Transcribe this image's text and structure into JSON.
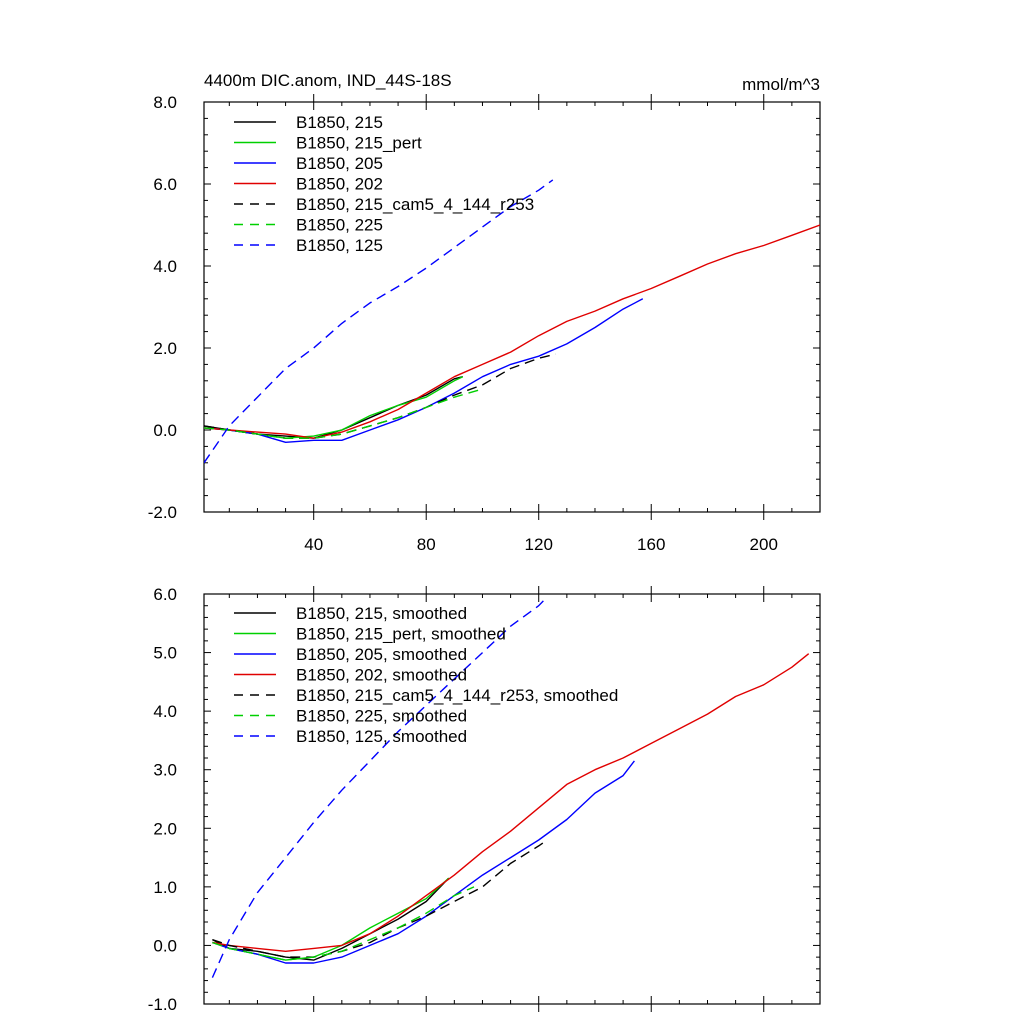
{
  "chart_data": [
    {
      "type": "line",
      "title": "4400m DIC.anom, IND_44S-18S",
      "units": "mmol/m^3",
      "xlim": [
        1,
        220
      ],
      "ylim": [
        -2.0,
        8.0
      ],
      "xticks": [
        40,
        80,
        120,
        160,
        200
      ],
      "xtick_labels": [
        "40",
        "80",
        "120",
        "160",
        "200"
      ],
      "yticks": [
        -2.0,
        0.0,
        2.0,
        4.0,
        6.0,
        8.0
      ],
      "ytick_labels": [
        "-2.0",
        "0.0",
        "2.0",
        "4.0",
        "6.0",
        "8.0"
      ],
      "legend_position": "top-left",
      "series": [
        {
          "name": "B1850, 215",
          "color": "#000000",
          "dash": "solid",
          "x": [
            1,
            10,
            20,
            30,
            40,
            50,
            60,
            70,
            80,
            90,
            93
          ],
          "y": [
            0.1,
            0.0,
            -0.1,
            -0.15,
            -0.2,
            0.0,
            0.3,
            0.6,
            0.85,
            1.25,
            1.3
          ]
        },
        {
          "name": "B1850, 215_pert",
          "color": "#00d000",
          "dash": "solid",
          "x": [
            1,
            10,
            20,
            30,
            40,
            50,
            60,
            70,
            80,
            90,
            93
          ],
          "y": [
            0.05,
            0.0,
            -0.1,
            -0.2,
            -0.15,
            0.0,
            0.35,
            0.6,
            0.8,
            1.2,
            1.3
          ]
        },
        {
          "name": "B1850, 205",
          "color": "#0000ff",
          "dash": "solid",
          "x": [
            1,
            10,
            20,
            30,
            40,
            50,
            60,
            70,
            80,
            90,
            100,
            110,
            120,
            130,
            140,
            150,
            157
          ],
          "y": [
            0.05,
            0.0,
            -0.1,
            -0.3,
            -0.25,
            -0.25,
            0.0,
            0.25,
            0.55,
            0.9,
            1.3,
            1.6,
            1.8,
            2.1,
            2.5,
            2.95,
            3.2
          ]
        },
        {
          "name": "B1850, 202",
          "color": "#e00000",
          "dash": "solid",
          "x": [
            1,
            10,
            20,
            30,
            40,
            50,
            60,
            70,
            80,
            90,
            100,
            110,
            120,
            130,
            140,
            150,
            160,
            170,
            180,
            190,
            200,
            210,
            220
          ],
          "y": [
            0.05,
            0.0,
            -0.05,
            -0.1,
            -0.2,
            -0.05,
            0.2,
            0.5,
            0.9,
            1.3,
            1.6,
            1.9,
            2.3,
            2.65,
            2.9,
            3.2,
            3.45,
            3.75,
            4.05,
            4.3,
            4.5,
            4.75,
            5.0
          ]
        },
        {
          "name": "B1850, 215_cam5_4_144_r253",
          "color": "#000000",
          "dash": "dashed",
          "x": [
            1,
            10,
            20,
            30,
            40,
            50,
            60,
            70,
            80,
            90,
            100,
            110,
            120,
            126
          ],
          "y": [
            0.1,
            0.0,
            -0.1,
            -0.2,
            -0.2,
            -0.1,
            0.1,
            0.3,
            0.55,
            0.85,
            1.1,
            1.5,
            1.75,
            1.85
          ]
        },
        {
          "name": "B1850, 225",
          "color": "#00d000",
          "dash": "dashed",
          "x": [
            1,
            10,
            20,
            30,
            40,
            50,
            60,
            70,
            80,
            90,
            100
          ],
          "y": [
            0.05,
            0.0,
            -0.1,
            -0.2,
            -0.2,
            -0.1,
            0.1,
            0.3,
            0.55,
            0.8,
            1.0
          ]
        },
        {
          "name": "B1850, 125",
          "color": "#0000ff",
          "dash": "dashed",
          "x": [
            1,
            10,
            20,
            30,
            40,
            50,
            60,
            70,
            80,
            90,
            100,
            110,
            120,
            125
          ],
          "y": [
            -0.8,
            0.1,
            0.8,
            1.5,
            2.0,
            2.6,
            3.1,
            3.5,
            3.95,
            4.45,
            4.95,
            5.45,
            5.85,
            6.1
          ]
        }
      ]
    },
    {
      "type": "line",
      "xlim": [
        1,
        220
      ],
      "ylim": [
        -1.0,
        6.0
      ],
      "xticks": [
        40,
        80,
        120,
        160,
        200
      ],
      "xtick_labels": [],
      "yticks": [
        -1.0,
        0.0,
        1.0,
        2.0,
        3.0,
        4.0,
        5.0,
        6.0
      ],
      "ytick_labels": [
        "-1.0",
        "0.0",
        "1.0",
        "2.0",
        "3.0",
        "4.0",
        "5.0",
        "6.0"
      ],
      "legend_position": "top-left",
      "series": [
        {
          "name": "B1850, 215, smoothed",
          "color": "#000000",
          "dash": "solid",
          "x": [
            4,
            10,
            20,
            30,
            40,
            50,
            60,
            70,
            80,
            88
          ],
          "y": [
            0.1,
            -0.05,
            -0.1,
            -0.2,
            -0.25,
            -0.05,
            0.2,
            0.45,
            0.75,
            1.15
          ]
        },
        {
          "name": "B1850, 215_pert, smoothed",
          "color": "#00d000",
          "dash": "solid",
          "x": [
            4,
            10,
            20,
            30,
            40,
            50,
            60,
            70,
            80,
            88
          ],
          "y": [
            0.05,
            -0.05,
            -0.15,
            -0.25,
            -0.2,
            0.0,
            0.3,
            0.55,
            0.8,
            1.15
          ]
        },
        {
          "name": "B1850, 205, smoothed",
          "color": "#0000ff",
          "dash": "solid",
          "x": [
            4,
            10,
            20,
            30,
            40,
            50,
            60,
            70,
            80,
            90,
            100,
            110,
            120,
            130,
            140,
            150,
            154
          ],
          "y": [
            0.05,
            -0.05,
            -0.15,
            -0.3,
            -0.3,
            -0.2,
            0.0,
            0.2,
            0.5,
            0.85,
            1.2,
            1.5,
            1.8,
            2.15,
            2.6,
            2.9,
            3.15
          ]
        },
        {
          "name": "B1850, 202, smoothed",
          "color": "#e00000",
          "dash": "solid",
          "x": [
            4,
            10,
            20,
            30,
            40,
            50,
            60,
            70,
            80,
            90,
            100,
            110,
            120,
            130,
            140,
            150,
            160,
            170,
            180,
            190,
            200,
            210,
            216
          ],
          "y": [
            0.05,
            0.0,
            -0.05,
            -0.1,
            -0.05,
            0.0,
            0.2,
            0.5,
            0.85,
            1.2,
            1.6,
            1.95,
            2.35,
            2.75,
            3.0,
            3.2,
            3.45,
            3.7,
            3.95,
            4.25,
            4.45,
            4.75,
            4.98
          ]
        },
        {
          "name": "B1850, 215_cam5_4_144_r253, smoothed",
          "color": "#000000",
          "dash": "dashed",
          "x": [
            4,
            10,
            20,
            30,
            40,
            50,
            60,
            70,
            80,
            90,
            100,
            110,
            120,
            123
          ],
          "y": [
            0.1,
            0.0,
            -0.1,
            -0.2,
            -0.2,
            -0.1,
            0.05,
            0.3,
            0.5,
            0.75,
            1.0,
            1.4,
            1.7,
            1.8
          ]
        },
        {
          "name": "B1850, 225, smoothed",
          "color": "#00d000",
          "dash": "dashed",
          "x": [
            4,
            10,
            20,
            30,
            40,
            50,
            60,
            70,
            80,
            90,
            97
          ],
          "y": [
            0.05,
            -0.05,
            -0.15,
            -0.25,
            -0.2,
            -0.1,
            0.1,
            0.3,
            0.55,
            0.85,
            1.0
          ]
        },
        {
          "name": "B1850, 125, smoothed",
          "color": "#0000ff",
          "dash": "dashed",
          "x": [
            4,
            10,
            20,
            30,
            40,
            50,
            60,
            70,
            80,
            90,
            100,
            110,
            120,
            123
          ],
          "y": [
            -0.55,
            0.1,
            0.9,
            1.5,
            2.1,
            2.65,
            3.15,
            3.65,
            4.1,
            4.55,
            5.0,
            5.45,
            5.8,
            5.95
          ]
        }
      ]
    }
  ]
}
